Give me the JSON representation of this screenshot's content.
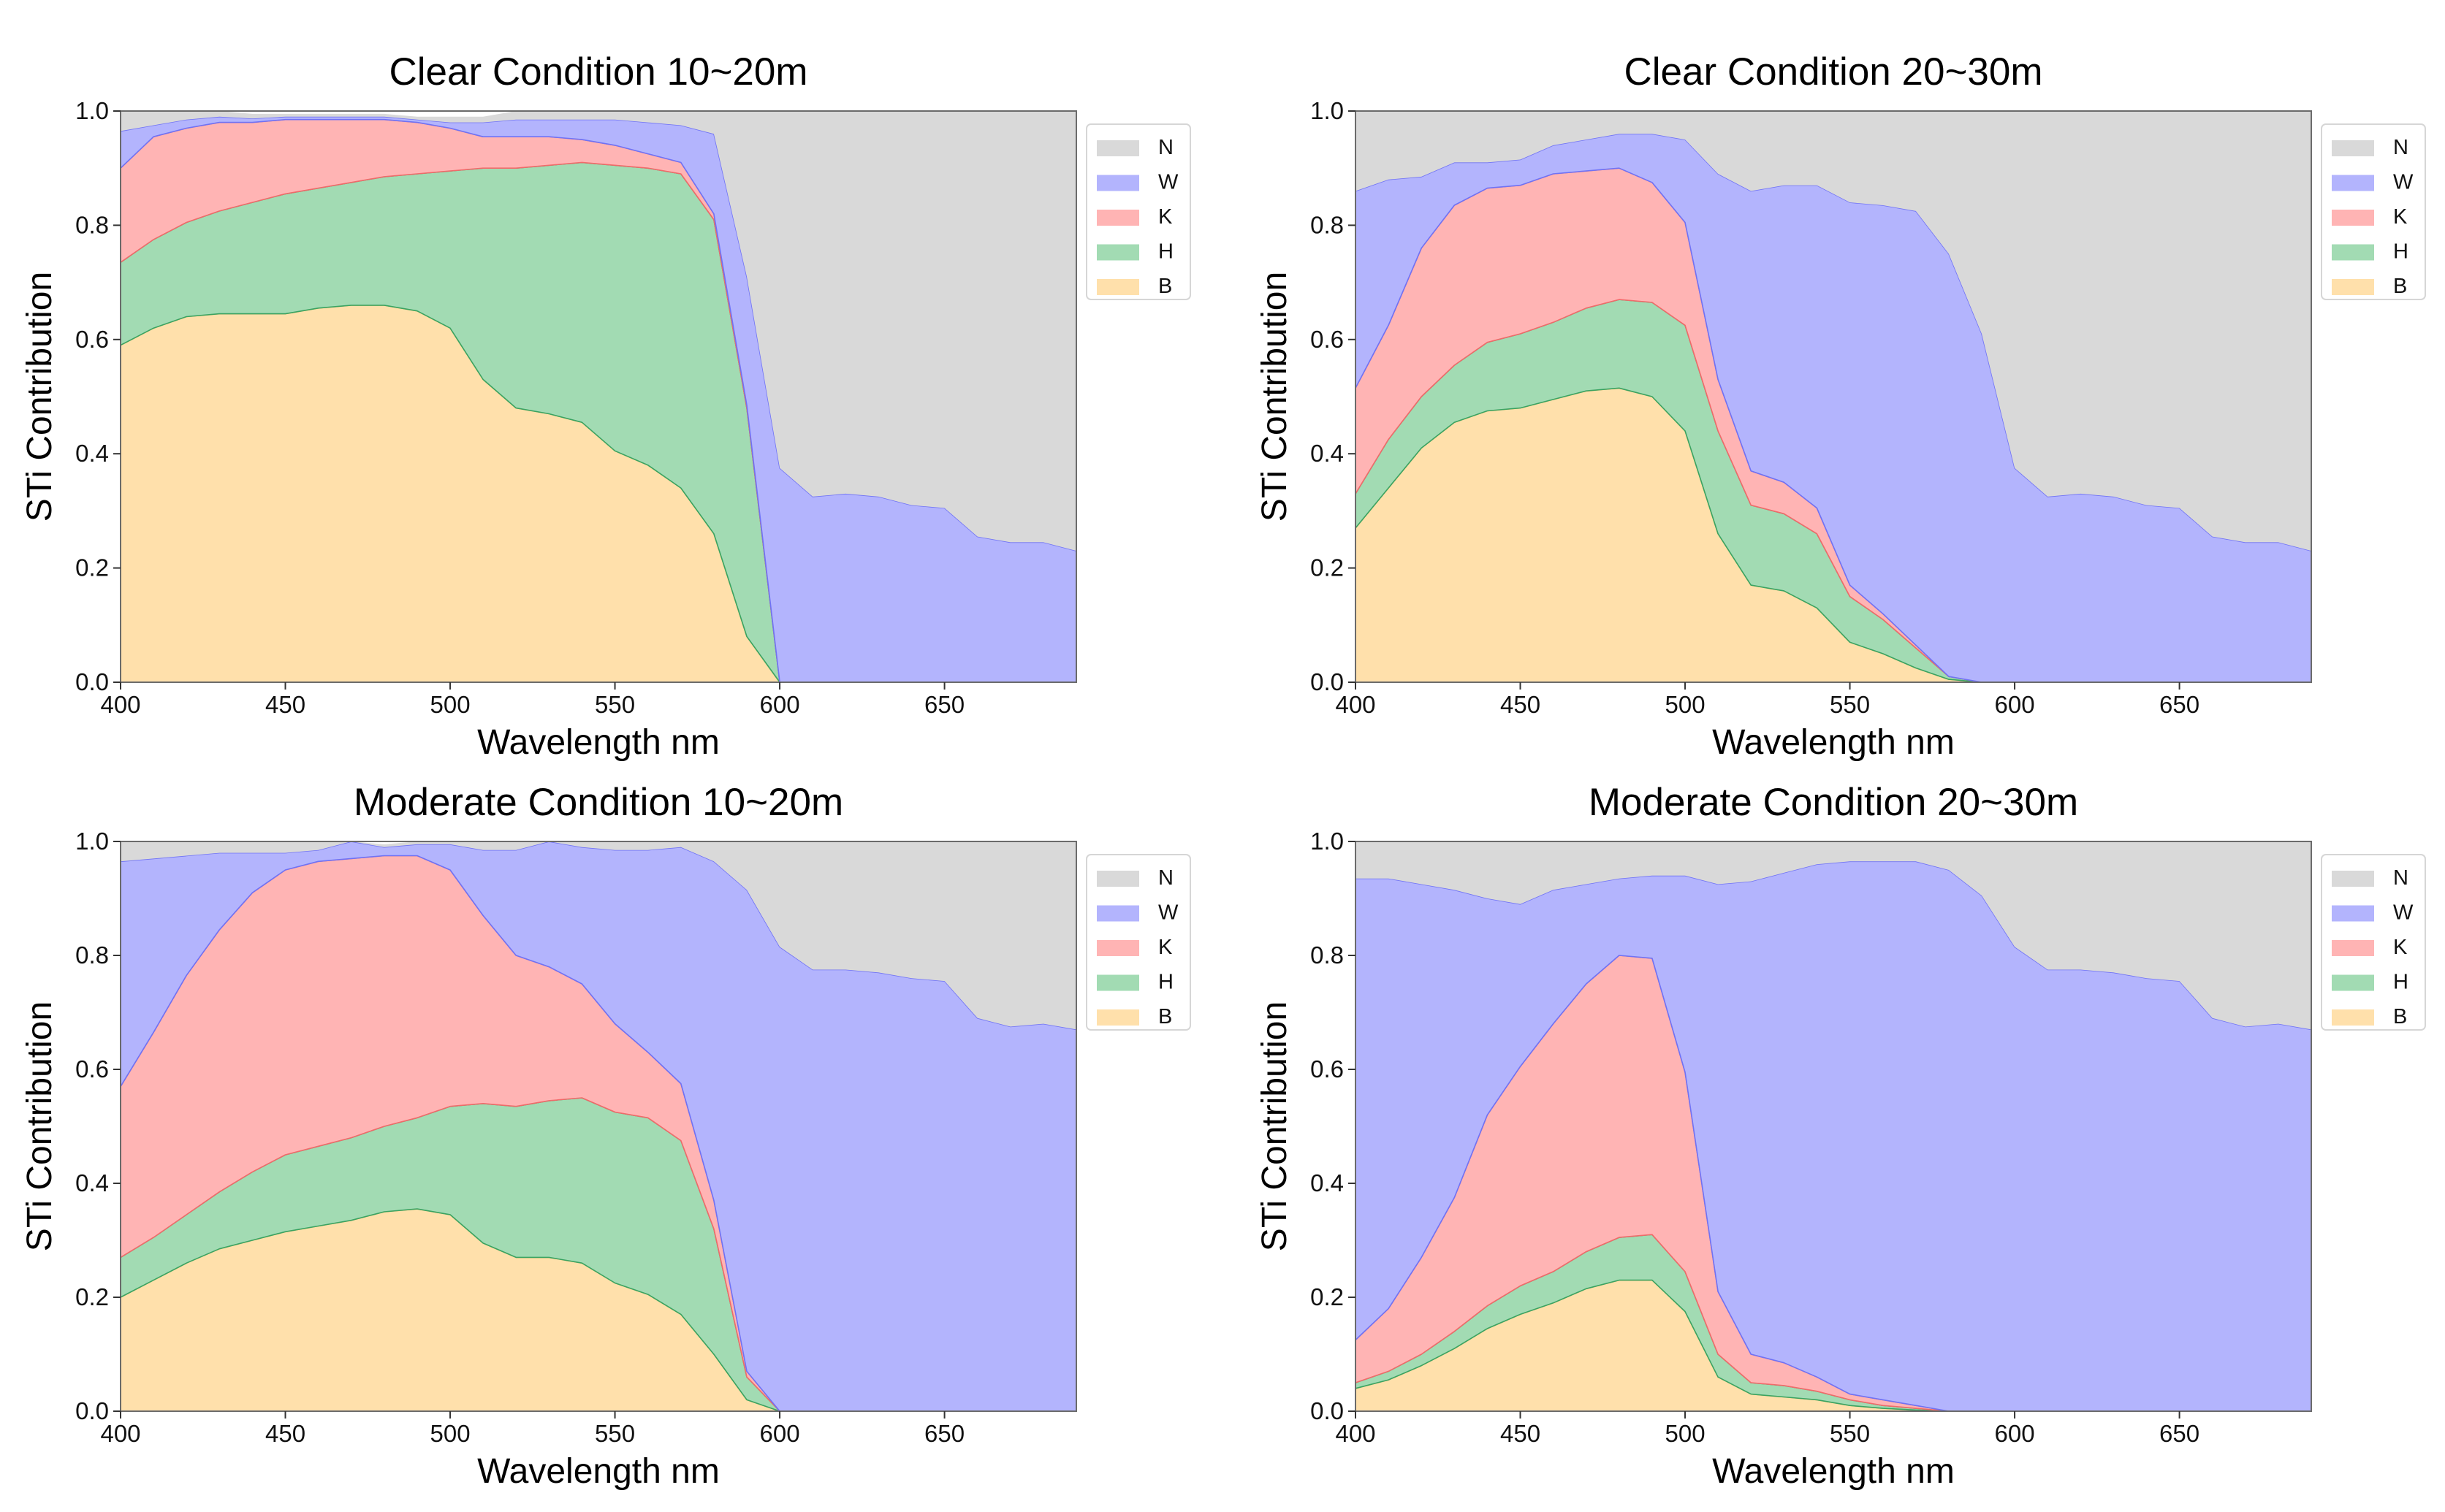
{
  "chart_data": [
    {
      "type": "area",
      "stacked": true,
      "title": "Clear Condition 10~20m",
      "xlabel": "Wavelength nm",
      "ylabel": "STi Contribution",
      "xlim": [
        400,
        690
      ],
      "ylim": [
        0,
        1
      ],
      "xticks": [
        "400",
        "450",
        "500",
        "550",
        "600",
        "650"
      ],
      "yticks": [
        "0.0",
        "0.2",
        "0.4",
        "0.6",
        "0.8",
        "1.0"
      ],
      "legend": "right",
      "x": [
        400,
        410,
        420,
        430,
        440,
        450,
        460,
        470,
        480,
        490,
        500,
        510,
        520,
        530,
        540,
        550,
        560,
        570,
        580,
        590,
        600,
        610,
        620,
        630,
        640,
        650,
        660,
        670,
        680,
        690
      ],
      "series": [
        {
          "name": "B",
          "color": "#ffe0ab",
          "values": [
            0.59,
            0.62,
            0.64,
            0.645,
            0.645,
            0.645,
            0.655,
            0.66,
            0.66,
            0.65,
            0.62,
            0.53,
            0.48,
            0.47,
            0.455,
            0.405,
            0.38,
            0.34,
            0.26,
            0.08,
            0,
            0,
            0,
            0,
            0,
            0,
            0,
            0,
            0,
            0
          ]
        },
        {
          "name": "H",
          "color": "#a2dbb3",
          "values": [
            0.145,
            0.155,
            0.165,
            0.18,
            0.195,
            0.21,
            0.21,
            0.215,
            0.225,
            0.24,
            0.275,
            0.37,
            0.42,
            0.435,
            0.455,
            0.5,
            0.52,
            0.55,
            0.55,
            0.4,
            0,
            0,
            0,
            0,
            0,
            0,
            0,
            0,
            0,
            0
          ]
        },
        {
          "name": "K",
          "color": "#ffb4b4",
          "values": [
            0.165,
            0.18,
            0.165,
            0.155,
            0.14,
            0.13,
            0.12,
            0.11,
            0.1,
            0.09,
            0.075,
            0.055,
            0.055,
            0.05,
            0.04,
            0.035,
            0.025,
            0.02,
            0.01,
            0.005,
            0,
            0,
            0,
            0,
            0,
            0,
            0,
            0,
            0,
            0
          ]
        },
        {
          "name": "W",
          "color": "#b3b4fd",
          "values": [
            0.065,
            0.02,
            0.015,
            0.01,
            0.007,
            0.005,
            0.005,
            0.005,
            0.005,
            0.005,
            0.01,
            0.025,
            0.03,
            0.03,
            0.035,
            0.045,
            0.055,
            0.065,
            0.14,
            0.225,
            0.375,
            0.325,
            0.33,
            0.325,
            0.31,
            0.305,
            0.255,
            0.245,
            0.245,
            0.23
          ]
        },
        {
          "name": "N",
          "color": "#d9d9d9",
          "values": [
            0.035,
            0.025,
            0.015,
            0.01,
            0.008,
            0.005,
            0.005,
            0.005,
            0.005,
            0.005,
            0.01,
            0.01,
            0.015,
            0.015,
            0.015,
            0.015,
            0.02,
            0.025,
            0.04,
            0.29,
            0.625,
            0.675,
            0.67,
            0.675,
            0.69,
            0.695,
            0.745,
            0.755,
            0.755,
            0.77
          ]
        }
      ]
    },
    {
      "type": "area",
      "stacked": true,
      "title": "Clear Condition 20~30m",
      "xlabel": "Wavelength nm",
      "ylabel": "STi Contribution",
      "xlim": [
        400,
        690
      ],
      "ylim": [
        0,
        1
      ],
      "xticks": [
        "400",
        "450",
        "500",
        "550",
        "600",
        "650"
      ],
      "yticks": [
        "0.0",
        "0.2",
        "0.4",
        "0.6",
        "0.8",
        "1.0"
      ],
      "legend": "right",
      "x": [
        400,
        410,
        420,
        430,
        440,
        450,
        460,
        470,
        480,
        490,
        500,
        510,
        520,
        530,
        540,
        550,
        560,
        570,
        580,
        590,
        600,
        610,
        620,
        630,
        640,
        650,
        660,
        670,
        680,
        690
      ],
      "series": [
        {
          "name": "B",
          "color": "#ffe0ab",
          "values": [
            0.27,
            0.34,
            0.41,
            0.455,
            0.475,
            0.48,
            0.495,
            0.51,
            0.515,
            0.5,
            0.44,
            0.26,
            0.17,
            0.16,
            0.13,
            0.07,
            0.05,
            0.025,
            0.005,
            0,
            0,
            0,
            0,
            0,
            0,
            0,
            0,
            0,
            0,
            0
          ]
        },
        {
          "name": "H",
          "color": "#a2dbb3",
          "values": [
            0.06,
            0.085,
            0.09,
            0.1,
            0.12,
            0.13,
            0.135,
            0.145,
            0.155,
            0.165,
            0.185,
            0.18,
            0.14,
            0.135,
            0.13,
            0.08,
            0.06,
            0.035,
            0.005,
            0,
            0,
            0,
            0,
            0,
            0,
            0,
            0,
            0,
            0,
            0
          ]
        },
        {
          "name": "K",
          "color": "#ffb4b4",
          "values": [
            0.185,
            0.2,
            0.26,
            0.28,
            0.27,
            0.26,
            0.26,
            0.24,
            0.23,
            0.21,
            0.18,
            0.09,
            0.06,
            0.055,
            0.045,
            0.02,
            0.01,
            0.005,
            0,
            0,
            0,
            0,
            0,
            0,
            0,
            0,
            0,
            0,
            0,
            0
          ]
        },
        {
          "name": "W",
          "color": "#b3b4fd",
          "values": [
            0.345,
            0.255,
            0.125,
            0.075,
            0.045,
            0.045,
            0.05,
            0.055,
            0.06,
            0.085,
            0.145,
            0.36,
            0.49,
            0.52,
            0.565,
            0.67,
            0.715,
            0.76,
            0.74,
            0.61,
            0.375,
            0.325,
            0.33,
            0.325,
            0.31,
            0.305,
            0.255,
            0.245,
            0.245,
            0.23
          ]
        },
        {
          "name": "N",
          "color": "#d9d9d9",
          "values": [
            0.14,
            0.12,
            0.115,
            0.09,
            0.09,
            0.085,
            0.06,
            0.05,
            0.04,
            0.04,
            0.05,
            0.11,
            0.14,
            0.13,
            0.13,
            0.16,
            0.165,
            0.18,
            0.255,
            0.39,
            0.625,
            0.675,
            0.67,
            0.675,
            0.69,
            0.695,
            0.745,
            0.755,
            0.755,
            0.77
          ]
        }
      ]
    },
    {
      "type": "area",
      "stacked": true,
      "title": "Moderate Condition 10~20m",
      "xlabel": "Wavelength nm",
      "ylabel": "STi Contribution",
      "xlim": [
        400,
        690
      ],
      "ylim": [
        0,
        1
      ],
      "xticks": [
        "400",
        "450",
        "500",
        "550",
        "600",
        "650"
      ],
      "yticks": [
        "0.0",
        "0.2",
        "0.4",
        "0.6",
        "0.8",
        "1.0"
      ],
      "legend": "right",
      "x": [
        400,
        410,
        420,
        430,
        440,
        450,
        460,
        470,
        480,
        490,
        500,
        510,
        520,
        530,
        540,
        550,
        560,
        570,
        580,
        590,
        600,
        610,
        620,
        630,
        640,
        650,
        660,
        670,
        680,
        690
      ],
      "series": [
        {
          "name": "B",
          "color": "#ffe0ab",
          "values": [
            0.2,
            0.23,
            0.26,
            0.285,
            0.3,
            0.315,
            0.325,
            0.335,
            0.35,
            0.355,
            0.345,
            0.295,
            0.27,
            0.27,
            0.26,
            0.225,
            0.205,
            0.17,
            0.1,
            0.02,
            0,
            0,
            0,
            0,
            0,
            0,
            0,
            0,
            0,
            0
          ]
        },
        {
          "name": "H",
          "color": "#a2dbb3",
          "values": [
            0.07,
            0.075,
            0.085,
            0.1,
            0.12,
            0.135,
            0.14,
            0.145,
            0.15,
            0.16,
            0.19,
            0.245,
            0.265,
            0.275,
            0.29,
            0.3,
            0.31,
            0.305,
            0.22,
            0.04,
            0,
            0,
            0,
            0,
            0,
            0,
            0,
            0,
            0,
            0
          ]
        },
        {
          "name": "K",
          "color": "#ffb4b4",
          "values": [
            0.3,
            0.36,
            0.42,
            0.46,
            0.49,
            0.5,
            0.5,
            0.49,
            0.475,
            0.46,
            0.415,
            0.33,
            0.265,
            0.235,
            0.2,
            0.155,
            0.115,
            0.1,
            0.05,
            0.01,
            0,
            0,
            0,
            0,
            0,
            0,
            0,
            0,
            0,
            0
          ]
        },
        {
          "name": "W",
          "color": "#b3b4fd",
          "values": [
            0.395,
            0.305,
            0.21,
            0.135,
            0.07,
            0.03,
            0.02,
            0.035,
            0.015,
            0.02,
            0.045,
            0.115,
            0.185,
            0.225,
            0.24,
            0.305,
            0.355,
            0.415,
            0.595,
            0.845,
            0.815,
            0.775,
            0.775,
            0.77,
            0.76,
            0.755,
            0.69,
            0.675,
            0.68,
            0.67
          ]
        },
        {
          "name": "N",
          "color": "#d9d9d9",
          "values": [
            0.035,
            0.03,
            0.025,
            0.02,
            0.02,
            0.02,
            0.015,
            0.005,
            0.005,
            0.005,
            0.005,
            0.015,
            0.015,
            0.015,
            0.01,
            0.015,
            0.015,
            0.01,
            0.035,
            0.085,
            0.185,
            0.225,
            0.225,
            0.23,
            0.24,
            0.245,
            0.31,
            0.325,
            0.32,
            0.33
          ]
        }
      ]
    },
    {
      "type": "area",
      "stacked": true,
      "title": "Moderate Condition 20~30m",
      "xlabel": "Wavelength nm",
      "ylabel": "STi Contribution",
      "xlim": [
        400,
        690
      ],
      "ylim": [
        0,
        1
      ],
      "xticks": [
        "400",
        "450",
        "500",
        "550",
        "600",
        "650"
      ],
      "yticks": [
        "0.0",
        "0.2",
        "0.4",
        "0.6",
        "0.8",
        "1.0"
      ],
      "legend": "right",
      "x": [
        400,
        410,
        420,
        430,
        440,
        450,
        460,
        470,
        480,
        490,
        500,
        510,
        520,
        530,
        540,
        550,
        560,
        570,
        580,
        590,
        600,
        610,
        620,
        630,
        640,
        650,
        660,
        670,
        680,
        690
      ],
      "series": [
        {
          "name": "B",
          "color": "#ffe0ab",
          "values": [
            0.04,
            0.055,
            0.08,
            0.11,
            0.145,
            0.17,
            0.19,
            0.215,
            0.23,
            0.23,
            0.175,
            0.06,
            0.03,
            0.025,
            0.02,
            0.01,
            0.005,
            0.002,
            0,
            0,
            0,
            0,
            0,
            0,
            0,
            0,
            0,
            0,
            0,
            0
          ]
        },
        {
          "name": "H",
          "color": "#a2dbb3",
          "values": [
            0.01,
            0.015,
            0.02,
            0.03,
            0.04,
            0.05,
            0.055,
            0.065,
            0.075,
            0.08,
            0.07,
            0.04,
            0.02,
            0.02,
            0.015,
            0.01,
            0.005,
            0.003,
            0,
            0,
            0,
            0,
            0,
            0,
            0,
            0,
            0,
            0,
            0,
            0
          ]
        },
        {
          "name": "K",
          "color": "#ffb4b4",
          "values": [
            0.075,
            0.11,
            0.17,
            0.235,
            0.335,
            0.385,
            0.435,
            0.47,
            0.495,
            0.485,
            0.35,
            0.11,
            0.05,
            0.04,
            0.025,
            0.01,
            0.01,
            0.005,
            0,
            0,
            0,
            0,
            0,
            0,
            0,
            0,
            0,
            0,
            0,
            0
          ]
        },
        {
          "name": "W",
          "color": "#b3b4fd",
          "values": [
            0.81,
            0.755,
            0.655,
            0.54,
            0.38,
            0.285,
            0.235,
            0.175,
            0.135,
            0.145,
            0.345,
            0.715,
            0.83,
            0.86,
            0.9,
            0.935,
            0.945,
            0.955,
            0.95,
            0.905,
            0.815,
            0.775,
            0.775,
            0.77,
            0.76,
            0.755,
            0.69,
            0.675,
            0.68,
            0.67
          ]
        },
        {
          "name": "N",
          "color": "#d9d9d9",
          "values": [
            0.065,
            0.065,
            0.075,
            0.085,
            0.1,
            0.11,
            0.085,
            0.075,
            0.065,
            0.06,
            0.06,
            0.075,
            0.07,
            0.055,
            0.04,
            0.035,
            0.035,
            0.035,
            0.05,
            0.095,
            0.185,
            0.225,
            0.225,
            0.23,
            0.24,
            0.245,
            0.31,
            0.325,
            0.32,
            0.33
          ]
        }
      ]
    }
  ]
}
